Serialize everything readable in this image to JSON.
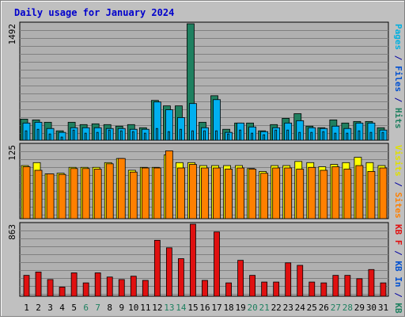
{
  "title": "Daily usage for January 2024",
  "colors": {
    "background": "#c0c0c0",
    "plot_bg": "#b0b0b0",
    "grid": "#808080",
    "title": "#0000cc",
    "hits": "#1f8060",
    "files": "#00b0f0",
    "pages": "#00b0e0",
    "visits": "#ffff00",
    "sites": "#ff8000",
    "kbf": "#e01010",
    "label_blue": "#0050d0",
    "label_green": "#1f8060"
  },
  "chart_data": [
    {
      "type": "bar",
      "panel": "top",
      "ymax_label": "1492",
      "ylim": [
        0,
        1492
      ],
      "right_labels": [
        {
          "text": "Pages",
          "color": "#00b0e0"
        },
        {
          "text": " / ",
          "color": "#0000a0"
        },
        {
          "text": "Files",
          "color": "#0050d0"
        },
        {
          "text": " / ",
          "color": "#0000a0"
        },
        {
          "text": "Hits",
          "color": "#1f8060"
        }
      ],
      "categories": [
        "1",
        "2",
        "3",
        "4",
        "5",
        "6",
        "7",
        "8",
        "9",
        "10",
        "11",
        "12",
        "13",
        "14",
        "15",
        "16",
        "17",
        "18",
        "19",
        "20",
        "21",
        "22",
        "23",
        "24",
        "25",
        "26",
        "27",
        "28",
        "29",
        "30",
        "31"
      ],
      "series": [
        {
          "key": "hits",
          "color": "#1f8060",
          "values": [
            270,
            260,
            230,
            120,
            230,
            200,
            210,
            200,
            180,
            200,
            160,
            510,
            440,
            440,
            1492,
            230,
            570,
            140,
            220,
            220,
            120,
            200,
            280,
            340,
            180,
            160,
            260,
            220,
            240,
            240,
            160
          ]
        },
        {
          "key": "files",
          "color": "#00b0f0",
          "values": [
            220,
            230,
            150,
            100,
            160,
            160,
            160,
            150,
            150,
            140,
            140,
            490,
            390,
            290,
            470,
            160,
            520,
            100,
            220,
            170,
            110,
            160,
            220,
            250,
            160,
            150,
            180,
            150,
            220,
            220,
            130
          ]
        },
        {
          "key": "pages",
          "color": "#00b0e0",
          "values": [
            120,
            140,
            80,
            40,
            130,
            90,
            100,
            130,
            120,
            110,
            90,
            150,
            110,
            140,
            120,
            120,
            120,
            80,
            130,
            90,
            70,
            130,
            130,
            100,
            100,
            110,
            90,
            90,
            120,
            100,
            100
          ]
        }
      ]
    },
    {
      "type": "bar",
      "panel": "middle",
      "ymax_label": "125",
      "ylim": [
        0,
        125
      ],
      "right_labels": [
        {
          "text": "Visits",
          "color": "#e0e000"
        },
        {
          "text": " / ",
          "color": "#0000a0"
        },
        {
          "text": "Sites",
          "color": "#ff8000"
        }
      ],
      "categories": [
        "1",
        "2",
        "3",
        "4",
        "5",
        "6",
        "7",
        "8",
        "9",
        "10",
        "11",
        "12",
        "13",
        "14",
        "15",
        "16",
        "17",
        "18",
        "19",
        "20",
        "21",
        "22",
        "23",
        "24",
        "25",
        "26",
        "27",
        "28",
        "29",
        "30",
        "31"
      ],
      "series": [
        {
          "key": "visits",
          "color": "#ffff00",
          "values": [
            90,
            95,
            76,
            77,
            87,
            87,
            87,
            95,
            102,
            82,
            87,
            87,
            108,
            95,
            95,
            90,
            90,
            90,
            90,
            85,
            80,
            90,
            90,
            97,
            95,
            88,
            92,
            95,
            104,
            95,
            90
          ]
        },
        {
          "key": "sites",
          "color": "#ff8000",
          "values": [
            88,
            82,
            76,
            75,
            85,
            85,
            84,
            93,
            102,
            79,
            86,
            86,
            115,
            86,
            92,
            86,
            86,
            84,
            86,
            84,
            77,
            86,
            86,
            84,
            87,
            82,
            88,
            84,
            90,
            80,
            86
          ]
        }
      ]
    },
    {
      "type": "bar",
      "panel": "bottom",
      "ymax_label": "863",
      "ylim": [
        0,
        863
      ],
      "right_labels": [
        {
          "text": "KB F",
          "color": "#e01010"
        },
        {
          "text": " / ",
          "color": "#0000a0"
        },
        {
          "text": "KB In",
          "color": "#0050d0"
        },
        {
          "text": " / ",
          "color": "#0000a0"
        },
        {
          "text": "KB Out",
          "color": "#1f8060"
        }
      ],
      "categories": [
        "1",
        "2",
        "3",
        "4",
        "5",
        "6",
        "7",
        "8",
        "9",
        "10",
        "11",
        "12",
        "13",
        "14",
        "15",
        "16",
        "17",
        "18",
        "19",
        "20",
        "21",
        "22",
        "23",
        "24",
        "25",
        "26",
        "27",
        "28",
        "29",
        "30",
        "31"
      ],
      "weekend_days": [
        "6",
        "7",
        "13",
        "14",
        "20",
        "21",
        "27",
        "28"
      ],
      "series": [
        {
          "key": "kbf",
          "color": "#e01010",
          "values": [
            250,
            290,
            200,
            110,
            280,
            160,
            280,
            230,
            200,
            240,
            190,
            670,
            580,
            450,
            863,
            190,
            770,
            160,
            430,
            250,
            170,
            170,
            400,
            370,
            170,
            160,
            250,
            250,
            210,
            320,
            160
          ]
        }
      ]
    }
  ]
}
